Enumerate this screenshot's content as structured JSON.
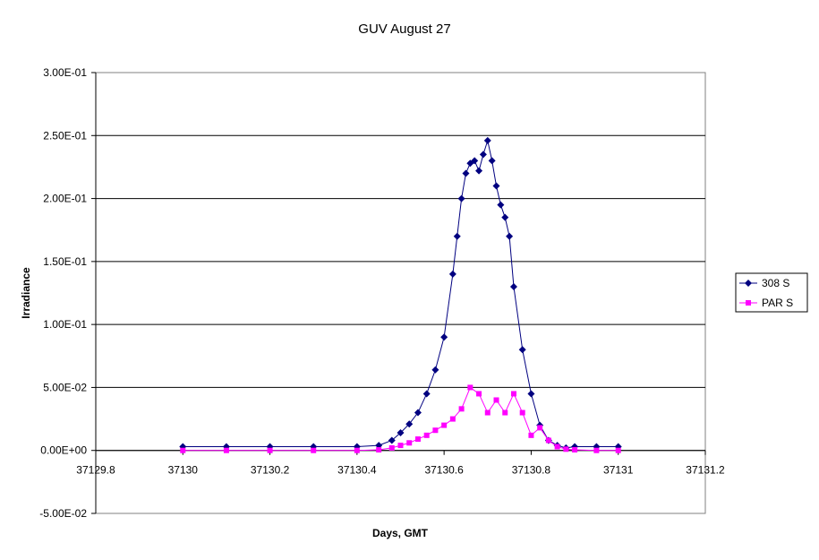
{
  "chart_data": {
    "type": "scatter",
    "title": "GUV August 27",
    "xlabel": "Days, GMT",
    "ylabel": "Irradiance",
    "xlim": [
      37129.8,
      37131.2
    ],
    "ylim": [
      -0.05,
      0.3
    ],
    "x_ticks": [
      "37129.8",
      "37130",
      "37130.2",
      "37130.4",
      "37130.6",
      "37130.8",
      "37131",
      "37131.2"
    ],
    "y_ticks": [
      "-5.00E-02",
      "0.00E+00",
      "5.00E-02",
      "1.00E-01",
      "1.50E-01",
      "2.00E-01",
      "2.50E-01",
      "3.00E-01"
    ],
    "grid": "horizontal",
    "legend_position": "right",
    "series": [
      {
        "name": "308 S",
        "color": "#000080",
        "marker": "diamond",
        "x": [
          37130.0,
          37130.1,
          37130.2,
          37130.3,
          37130.4,
          37130.45,
          37130.48,
          37130.5,
          37130.52,
          37130.54,
          37130.56,
          37130.58,
          37130.6,
          37130.62,
          37130.63,
          37130.64,
          37130.65,
          37130.66,
          37130.67,
          37130.68,
          37130.69,
          37130.7,
          37130.71,
          37130.72,
          37130.73,
          37130.74,
          37130.75,
          37130.76,
          37130.78,
          37130.8,
          37130.82,
          37130.84,
          37130.86,
          37130.88,
          37130.9,
          37130.95,
          37131.0
        ],
        "y": [
          0.003,
          0.003,
          0.003,
          0.003,
          0.003,
          0.004,
          0.008,
          0.014,
          0.021,
          0.03,
          0.045,
          0.064,
          0.09,
          0.14,
          0.17,
          0.2,
          0.22,
          0.228,
          0.23,
          0.222,
          0.235,
          0.246,
          0.23,
          0.21,
          0.195,
          0.185,
          0.17,
          0.13,
          0.08,
          0.045,
          0.02,
          0.008,
          0.004,
          0.002,
          0.003,
          0.003,
          0.003
        ]
      },
      {
        "name": "PAR S",
        "color": "#ff00ff",
        "marker": "square",
        "x": [
          37130.0,
          37130.1,
          37130.2,
          37130.3,
          37130.4,
          37130.45,
          37130.48,
          37130.5,
          37130.52,
          37130.54,
          37130.56,
          37130.58,
          37130.6,
          37130.62,
          37130.64,
          37130.66,
          37130.68,
          37130.7,
          37130.72,
          37130.74,
          37130.76,
          37130.78,
          37130.8,
          37130.82,
          37130.84,
          37130.86,
          37130.88,
          37130.9,
          37130.95,
          37131.0
        ],
        "y": [
          0.0,
          0.0,
          0.0,
          0.0,
          0.0,
          0.0005,
          0.002,
          0.004,
          0.006,
          0.009,
          0.012,
          0.016,
          0.02,
          0.025,
          0.033,
          0.05,
          0.045,
          0.03,
          0.04,
          0.03,
          0.045,
          0.03,
          0.012,
          0.018,
          0.008,
          0.003,
          0.001,
          0.0005,
          0.0,
          0.0
        ]
      }
    ]
  }
}
